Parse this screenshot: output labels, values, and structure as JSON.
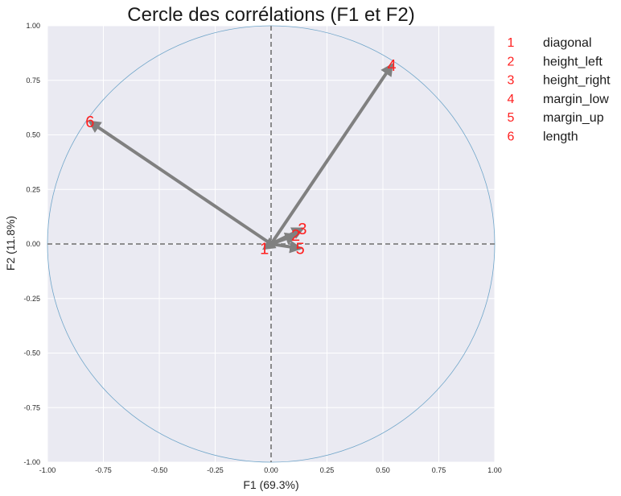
{
  "chart_data": {
    "type": "scatter",
    "title": "Cercle des corrélations (F1 et F2)",
    "xlabel": "F1 (69.3%)",
    "ylabel": "F2 (11.8%)",
    "xlim": [
      -1.0,
      1.0
    ],
    "ylim": [
      -1.0,
      1.0
    ],
    "xticks": [
      "-1.00",
      "-0.75",
      "-0.50",
      "-0.25",
      "0.00",
      "0.25",
      "0.50",
      "0.75",
      "1.00"
    ],
    "yticks": [
      "-1.00",
      "-0.75",
      "-0.50",
      "-0.25",
      "0.00",
      "0.25",
      "0.50",
      "0.75",
      "1.00"
    ],
    "grid": true,
    "legend_position": "right",
    "vectors": [
      {
        "label": "1",
        "name": "diagonal",
        "x": -0.03,
        "y": -0.02
      },
      {
        "label": "2",
        "name": "height_left",
        "x": 0.11,
        "y": 0.04
      },
      {
        "label": "3",
        "name": "height_right",
        "x": 0.14,
        "y": 0.07
      },
      {
        "label": "4",
        "name": "margin_low",
        "x": 0.54,
        "y": 0.82
      },
      {
        "label": "5",
        "name": "margin_up",
        "x": 0.13,
        "y": -0.02
      },
      {
        "label": "6",
        "name": "length",
        "x": -0.81,
        "y": 0.56
      }
    ],
    "colors": {
      "background": "#eaeaf2",
      "grid": "#ffffff",
      "circle": "#6fa5c9",
      "arrow": "#808080",
      "reference_lines": "#808080",
      "labels": "#ff2020"
    }
  }
}
